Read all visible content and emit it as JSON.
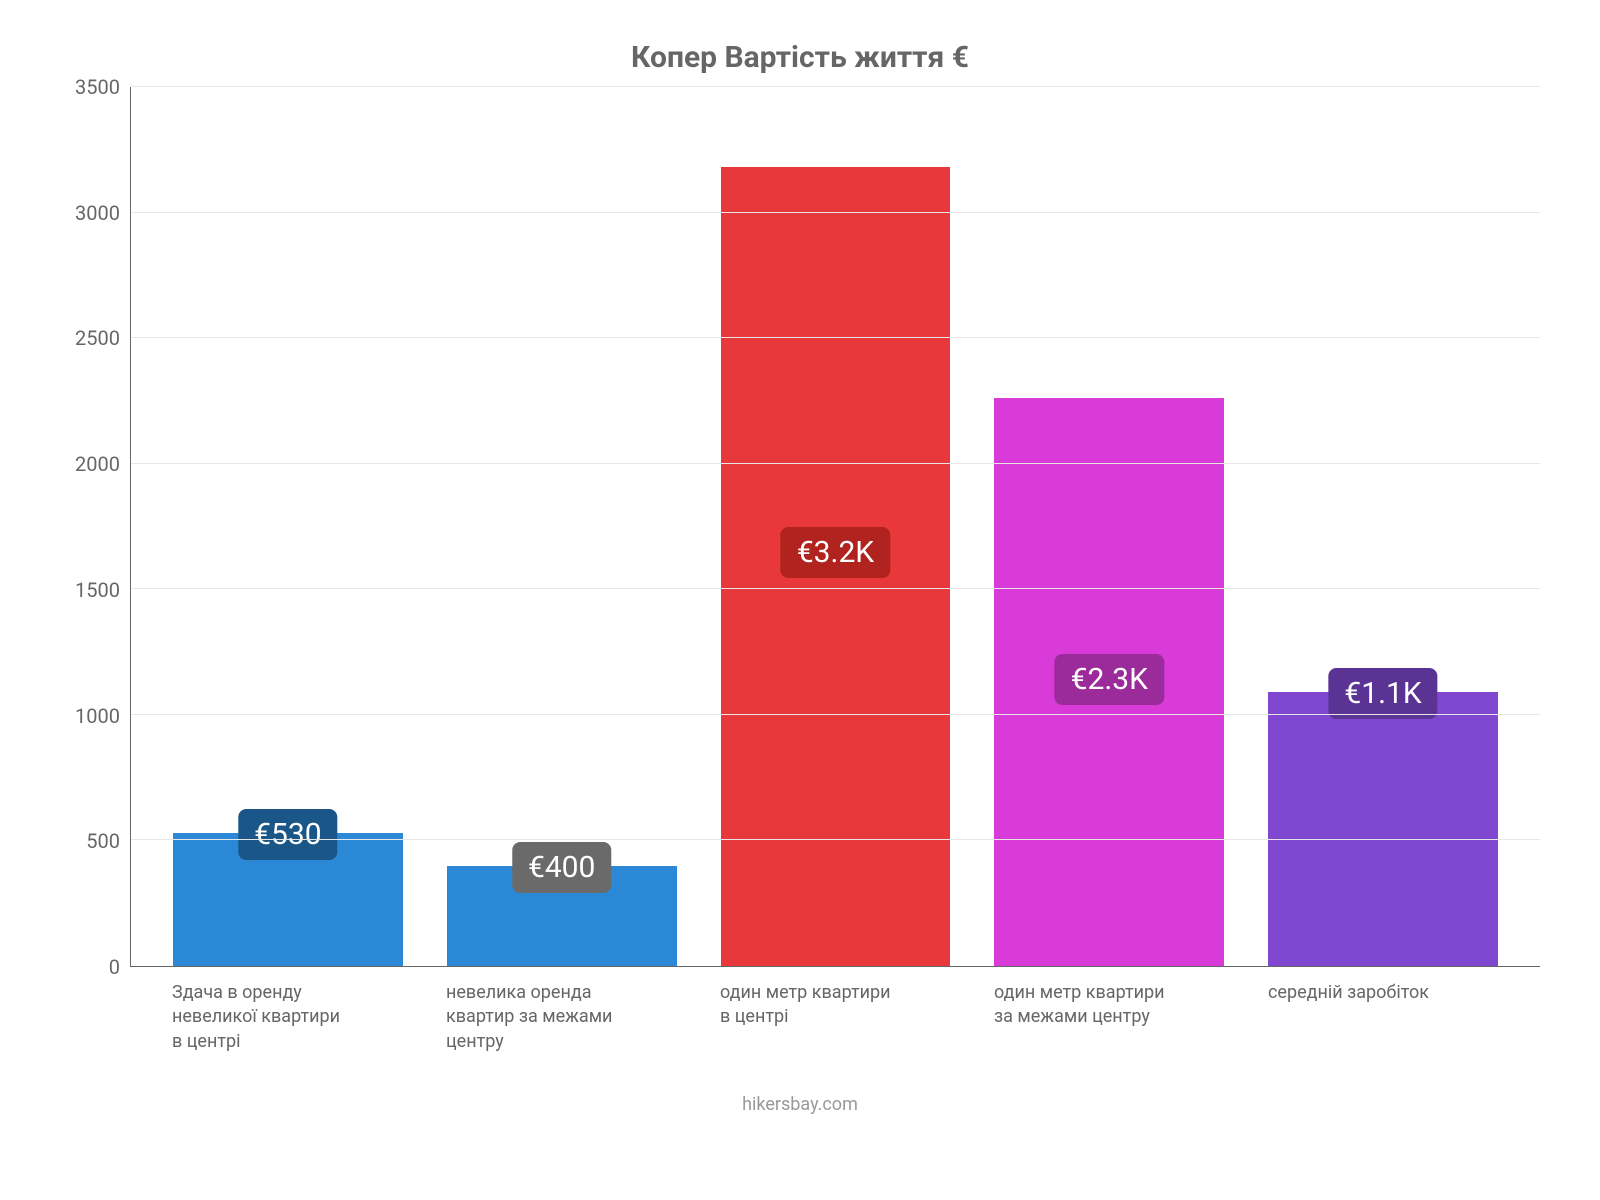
{
  "chart": {
    "type": "bar",
    "title": "Копер Вартість життя €",
    "title_fontsize": 30,
    "title_color": "#666666",
    "background_color": "#ffffff",
    "axis_color": "#666666",
    "grid_color": "#e6e6e6",
    "tick_font_color": "#666666",
    "tick_fontsize": 20,
    "xlabel_fontsize": 18,
    "xlabel_color": "#666666",
    "ylim": [
      0,
      3500
    ],
    "ytick_step": 500,
    "yticks": [
      0,
      500,
      1000,
      1500,
      2000,
      2500,
      3000,
      3500
    ],
    "categories": [
      "Здача в оренду невеликої квартири в центрі",
      "невелика оренда квартир за межами центру",
      "один метр квартири в центрі",
      "один метр квартири за межами центру",
      "середній заробіток"
    ],
    "values": [
      530,
      400,
      3180,
      2260,
      1090
    ],
    "value_labels": [
      "€530",
      "€400",
      "€3.2K",
      "€2.3K",
      "€1.1K"
    ],
    "bar_colors": [
      "#2a88d6",
      "#2a88d6",
      "#e8383b",
      "#d93bd9",
      "#8048d1"
    ],
    "label_bg_colors": [
      "#1a5687",
      "#6a6a6a",
      "#b0231e",
      "#9b2a9b",
      "#5a3394"
    ],
    "label_text_color": "#ffffff",
    "value_label_fontsize": 30,
    "bar_width_ratio": 0.78,
    "attribution": "hikersbay.com",
    "attribution_color": "#999999",
    "attribution_fontsize": 18
  }
}
